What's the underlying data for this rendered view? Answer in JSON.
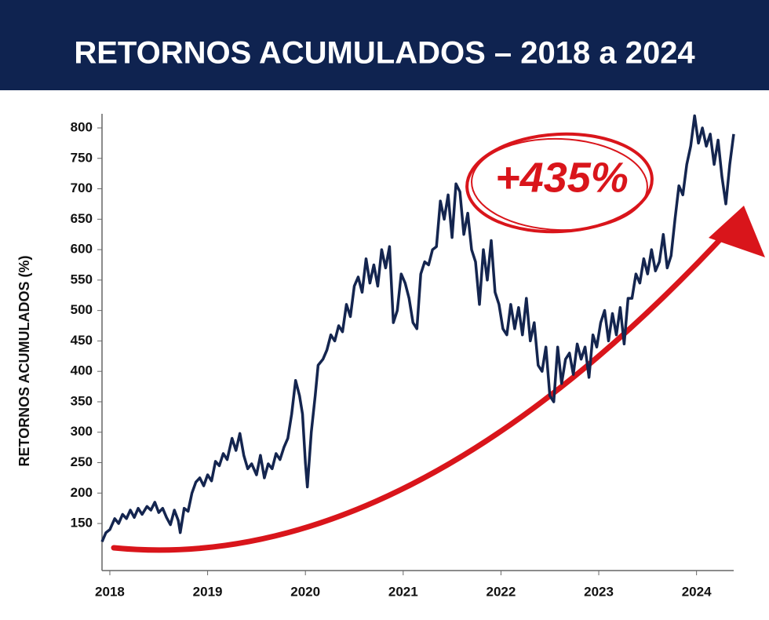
{
  "chart_data": {
    "type": "line",
    "title": "RETORNOS ACUMULADOS – 2018 a 2024",
    "y_label": "RETORNOS ACUMULADOS (%)",
    "annotation": "+435%",
    "xlim": [
      2017.92,
      2024.38
    ],
    "xticks": [
      2018,
      2019,
      2020,
      2021,
      2022,
      2023,
      2024
    ],
    "ylim": [
      75,
      820
    ],
    "yticks": [
      150,
      200,
      250,
      300,
      350,
      400,
      450,
      500,
      550,
      600,
      650,
      700,
      750,
      800
    ],
    "grid": false,
    "x": [
      2017.92,
      2017.96,
      2018.0,
      2018.05,
      2018.09,
      2018.13,
      2018.17,
      2018.21,
      2018.25,
      2018.29,
      2018.33,
      2018.38,
      2018.42,
      2018.46,
      2018.5,
      2018.54,
      2018.58,
      2018.62,
      2018.66,
      2018.7,
      2018.72,
      2018.76,
      2018.8,
      2018.84,
      2018.88,
      2018.92,
      2018.96,
      2019.0,
      2019.04,
      2019.08,
      2019.12,
      2019.16,
      2019.2,
      2019.25,
      2019.29,
      2019.33,
      2019.37,
      2019.41,
      2019.45,
      2019.5,
      2019.54,
      2019.58,
      2019.62,
      2019.66,
      2019.7,
      2019.74,
      2019.78,
      2019.82,
      2019.86,
      2019.9,
      2019.94,
      2019.97,
      2020.0,
      2020.02,
      2020.06,
      2020.1,
      2020.13,
      2020.18,
      2020.22,
      2020.26,
      2020.3,
      2020.34,
      2020.38,
      2020.42,
      2020.46,
      2020.5,
      2020.54,
      2020.58,
      2020.62,
      2020.66,
      2020.7,
      2020.74,
      2020.78,
      2020.82,
      2020.86,
      2020.9,
      2020.94,
      2020.98,
      2021.02,
      2021.06,
      2021.1,
      2021.14,
      2021.18,
      2021.22,
      2021.26,
      2021.3,
      2021.34,
      2021.38,
      2021.42,
      2021.46,
      2021.5,
      2021.54,
      2021.58,
      2021.62,
      2021.66,
      2021.7,
      2021.74,
      2021.78,
      2021.82,
      2021.86,
      2021.9,
      2021.94,
      2021.98,
      2022.02,
      2022.06,
      2022.1,
      2022.14,
      2022.18,
      2022.22,
      2022.26,
      2022.3,
      2022.34,
      2022.38,
      2022.42,
      2022.46,
      2022.5,
      2022.54,
      2022.58,
      2022.62,
      2022.66,
      2022.7,
      2022.74,
      2022.78,
      2022.82,
      2022.86,
      2022.9,
      2022.94,
      2022.98,
      2023.02,
      2023.06,
      2023.1,
      2023.14,
      2023.18,
      2023.22,
      2023.26,
      2023.3,
      2023.34,
      2023.38,
      2023.42,
      2023.46,
      2023.5,
      2023.54,
      2023.58,
      2023.62,
      2023.66,
      2023.7,
      2023.74,
      2023.78,
      2023.82,
      2023.86,
      2023.9,
      2023.94,
      2023.98,
      2024.02,
      2024.06,
      2024.1,
      2024.14,
      2024.18,
      2024.22,
      2024.26,
      2024.3,
      2024.34,
      2024.38
    ],
    "series": [
      {
        "color": "#14254f",
        "values": [
          120,
          135,
          140,
          158,
          150,
          165,
          158,
          172,
          160,
          175,
          165,
          178,
          172,
          185,
          168,
          175,
          160,
          148,
          172,
          155,
          135,
          175,
          170,
          200,
          218,
          225,
          212,
          230,
          220,
          252,
          245,
          265,
          255,
          290,
          270,
          298,
          262,
          240,
          248,
          230,
          262,
          225,
          248,
          240,
          265,
          255,
          275,
          290,
          330,
          385,
          360,
          330,
          250,
          210,
          300,
          360,
          410,
          420,
          435,
          460,
          450,
          475,
          465,
          510,
          490,
          540,
          555,
          530,
          585,
          545,
          575,
          540,
          600,
          570,
          605,
          480,
          500,
          560,
          545,
          520,
          480,
          470,
          560,
          580,
          575,
          600,
          605,
          680,
          650,
          690,
          620,
          708,
          695,
          625,
          660,
          600,
          580,
          510,
          600,
          550,
          615,
          530,
          510,
          470,
          460,
          510,
          470,
          505,
          460,
          520,
          450,
          480,
          410,
          400,
          440,
          360,
          350,
          440,
          380,
          420,
          430,
          395,
          445,
          420,
          440,
          390,
          460,
          440,
          480,
          500,
          450,
          495,
          460,
          505,
          445,
          520,
          520,
          560,
          545,
          585,
          560,
          600,
          565,
          580,
          625,
          570,
          590,
          650,
          705,
          690,
          740,
          770,
          820,
          775,
          800,
          770,
          790,
          740,
          780,
          720,
          675,
          740,
          790
        ]
      }
    ]
  }
}
